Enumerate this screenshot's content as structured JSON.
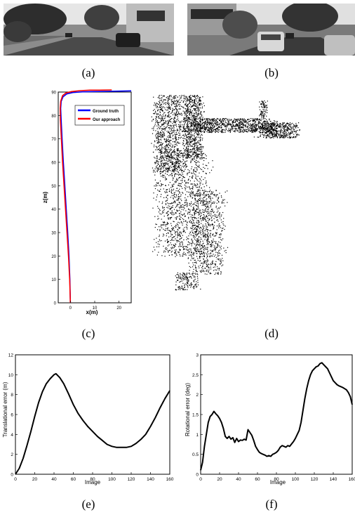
{
  "captions": {
    "a": "(a)",
    "b": "(b)",
    "c": "(c)",
    "d": "(d)",
    "e": "(e)",
    "f": "(f)"
  },
  "chart_data": [
    {
      "type": "line",
      "panel": "c",
      "xlabel": "x(m)",
      "ylabel": "z(m)",
      "xlim": [
        -5,
        25
      ],
      "ylim": [
        0,
        90
      ],
      "xticks": [
        0,
        10,
        20
      ],
      "yticks": [
        0,
        10,
        20,
        30,
        40,
        50,
        60,
        70,
        80,
        90
      ],
      "legend_position": "top-right",
      "series": [
        {
          "name": "Ground truth",
          "color": "#0000ff",
          "x": [
            0,
            -0.2,
            -0.6,
            -1.1,
            -1.7,
            -2.3,
            -2.9,
            -3.4,
            -3.8,
            -4.0,
            -3.8,
            -3.0,
            -1.5,
            1.0,
            5.0,
            10.0,
            15.0,
            20.0,
            25.0
          ],
          "y": [
            0,
            10,
            20,
            30,
            40,
            50,
            60,
            70,
            78,
            83,
            86,
            88,
            89.2,
            89.8,
            90.1,
            90.2,
            90.3,
            90.4,
            90.5
          ]
        },
        {
          "name": "Our approach",
          "color": "#ff0000",
          "x": [
            0,
            -0.3,
            -0.8,
            -1.4,
            -2.0,
            -2.6,
            -3.2,
            -3.7,
            -4.1,
            -4.2,
            -4.0,
            -3.2,
            -1.8,
            0.5,
            4.0,
            8.0,
            12.0,
            17.0
          ],
          "y": [
            0,
            10,
            20,
            30,
            40,
            50,
            60,
            70,
            78,
            83,
            86,
            88.5,
            89.6,
            90.2,
            90.6,
            90.8,
            90.8,
            90.9
          ]
        }
      ]
    },
    {
      "type": "line",
      "panel": "e",
      "xlabel": "Image",
      "ylabel": "Translational error (m)",
      "xlim": [
        0,
        160
      ],
      "ylim": [
        0,
        12
      ],
      "xticks": [
        0,
        20,
        40,
        60,
        80,
        100,
        120,
        140,
        160
      ],
      "yticks": [
        0,
        2,
        4,
        6,
        8,
        10,
        12
      ],
      "series": [
        {
          "color": "#000000",
          "x": [
            0,
            4,
            8,
            12,
            16,
            20,
            24,
            28,
            32,
            36,
            40,
            42,
            46,
            50,
            55,
            60,
            65,
            70,
            75,
            80,
            85,
            90,
            95,
            100,
            105,
            110,
            115,
            120,
            125,
            130,
            135,
            140,
            145,
            150,
            155,
            160
          ],
          "y": [
            0,
            0.6,
            1.6,
            2.9,
            4.3,
            5.8,
            7.2,
            8.3,
            9.1,
            9.6,
            10.0,
            10.1,
            9.7,
            9.1,
            8.1,
            7.0,
            6.1,
            5.4,
            4.8,
            4.3,
            3.8,
            3.4,
            3.0,
            2.8,
            2.7,
            2.7,
            2.7,
            2.8,
            3.1,
            3.5,
            4.0,
            4.8,
            5.7,
            6.7,
            7.6,
            8.4
          ]
        }
      ]
    },
    {
      "type": "line",
      "panel": "f",
      "xlabel": "Image",
      "ylabel": "Rotational error (deg)",
      "xlim": [
        0,
        160
      ],
      "ylim": [
        0,
        3
      ],
      "xticks": [
        0,
        20,
        40,
        60,
        80,
        100,
        120,
        140,
        160
      ],
      "yticks": [
        0,
        0.5,
        1,
        1.5,
        2,
        2.5,
        3
      ],
      "series": [
        {
          "color": "#000000",
          "x": [
            0,
            2,
            4,
            6,
            8,
            10,
            12,
            14,
            16,
            18,
            20,
            22,
            24,
            26,
            28,
            30,
            32,
            34,
            36,
            38,
            40,
            42,
            44,
            46,
            48,
            50,
            52,
            54,
            56,
            58,
            60,
            62,
            64,
            66,
            68,
            70,
            72,
            74,
            76,
            78,
            80,
            82,
            84,
            86,
            88,
            90,
            92,
            94,
            96,
            98,
            100,
            102,
            104,
            106,
            108,
            110,
            112,
            114,
            116,
            118,
            120,
            122,
            124,
            126,
            128,
            130,
            132,
            134,
            136,
            138,
            140,
            142,
            144,
            146,
            148,
            150,
            152,
            154,
            156,
            158,
            160
          ],
          "y": [
            0.1,
            0.3,
            0.7,
            1.0,
            1.3,
            1.45,
            1.5,
            1.58,
            1.52,
            1.47,
            1.4,
            1.3,
            1.15,
            0.95,
            0.9,
            0.95,
            0.88,
            0.92,
            0.8,
            0.9,
            0.82,
            0.86,
            0.85,
            0.88,
            0.86,
            1.12,
            1.05,
            0.98,
            0.85,
            0.7,
            0.62,
            0.55,
            0.52,
            0.5,
            0.48,
            0.45,
            0.47,
            0.45,
            0.5,
            0.52,
            0.55,
            0.6,
            0.68,
            0.72,
            0.7,
            0.68,
            0.72,
            0.7,
            0.76,
            0.82,
            0.9,
            1.0,
            1.1,
            1.3,
            1.6,
            1.9,
            2.15,
            2.35,
            2.5,
            2.6,
            2.65,
            2.7,
            2.72,
            2.78,
            2.8,
            2.75,
            2.7,
            2.65,
            2.55,
            2.45,
            2.35,
            2.3,
            2.25,
            2.22,
            2.2,
            2.18,
            2.15,
            2.12,
            2.05,
            1.95,
            1.75
          ]
        }
      ]
    }
  ]
}
